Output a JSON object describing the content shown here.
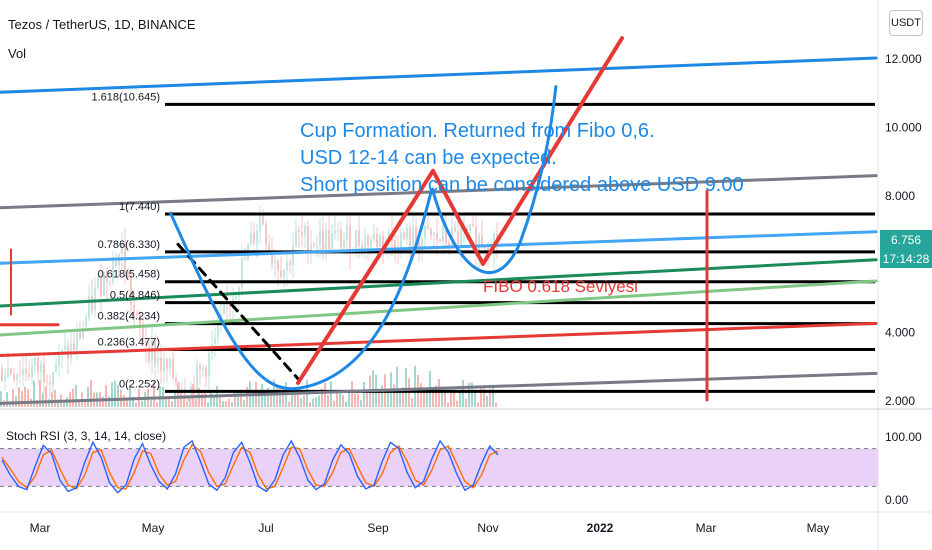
{
  "header": {
    "title": "Tezos / TetherUS, 1D, BINANCE",
    "vol_label": "Vol",
    "currency_button": "USDT"
  },
  "price_tag": {
    "value": "6.756",
    "countdown": "17:14:28"
  },
  "colors": {
    "background": "#ffffff",
    "price_tag": "#26a69a",
    "annotation_blue": "#1e88e5",
    "annotation_red": "#e53935",
    "stoch_band": "#ead1f7"
  },
  "annotations": {
    "cup_note": [
      "Cup Formation. Returned from Fibo 0,6.",
      "USD 12-14  can be expected.",
      "Short position can be considered above USD 9.00"
    ],
    "fibo_note": "FIBO 0.618 Seviyesi"
  },
  "chart_data": [
    {
      "type": "line",
      "name": "price",
      "y_axis": {
        "ticks": [
          "12.000",
          "10.000",
          "8.000",
          "4.000",
          "2.000"
        ]
      },
      "x_axis": {
        "ticks": [
          "Mar",
          "May",
          "Jul",
          "Sep",
          "Nov",
          "2022",
          "Mar",
          "May"
        ]
      },
      "fib_levels": [
        {
          "label": "1.618(10.645)",
          "value": 10.645
        },
        {
          "label": "1(7.440)",
          "value": 7.44
        },
        {
          "label": "0.786(6.330)",
          "value": 6.33
        },
        {
          "label": "0.618(5.458)",
          "value": 5.458
        },
        {
          "label": "0.5(4.846)",
          "value": 4.846
        },
        {
          "label": "0.382(4.234)",
          "value": 4.234
        },
        {
          "label": "0.236(3.477)",
          "value": 3.477
        },
        {
          "label": "0(2.252)",
          "value": 2.252
        }
      ],
      "price_path": [
        [
          "Feb 15",
          2.9
        ],
        [
          "Mar 15",
          3.6
        ],
        [
          "Apr 10",
          5.4
        ],
        [
          "May 05",
          6.4
        ],
        [
          "May 20",
          4.2
        ],
        [
          "Jun 20",
          2.9
        ],
        [
          "Jul 20",
          2.3
        ],
        [
          "Aug 10",
          3.3
        ],
        [
          "Aug 30",
          4.8
        ],
        [
          "Sep 20",
          6.3
        ],
        [
          "Oct 05",
          7.5
        ],
        [
          "Oct 15",
          6.3
        ],
        [
          "Nov 01",
          5.8
        ],
        [
          "Nov 10",
          6.7
        ]
      ]
    },
    {
      "type": "line",
      "name": "Stoch RSI (3, 3, 14, 14, close)",
      "y_axis": {
        "ticks": [
          "100.00",
          "0.00"
        ]
      },
      "upper_band": 80,
      "lower_band": 20,
      "k_values": [
        62,
        38,
        20,
        15,
        52,
        85,
        72,
        30,
        12,
        18,
        58,
        90,
        66,
        26,
        10,
        22,
        64,
        88,
        54,
        28,
        16,
        40,
        82,
        92,
        60,
        24,
        14,
        34,
        74,
        90,
        58,
        20,
        12,
        30,
        70,
        92,
        66,
        30,
        15,
        24,
        62,
        86,
        72,
        36,
        16,
        22,
        60,
        90,
        80,
        42,
        18,
        28,
        64,
        92,
        74,
        40,
        14,
        22,
        56,
        84,
        70
      ],
      "d_values": [
        66,
        48,
        28,
        18,
        36,
        70,
        78,
        48,
        22,
        16,
        38,
        74,
        78,
        42,
        18,
        16,
        42,
        76,
        72,
        40,
        22,
        28,
        62,
        86,
        76,
        42,
        20,
        24,
        54,
        82,
        74,
        38,
        16,
        20,
        50,
        82,
        80,
        46,
        22,
        20,
        42,
        74,
        80,
        52,
        26,
        20,
        40,
        74,
        84,
        60,
        30,
        22,
        46,
        78,
        84,
        56,
        28,
        18,
        38,
        70,
        76
      ]
    }
  ]
}
